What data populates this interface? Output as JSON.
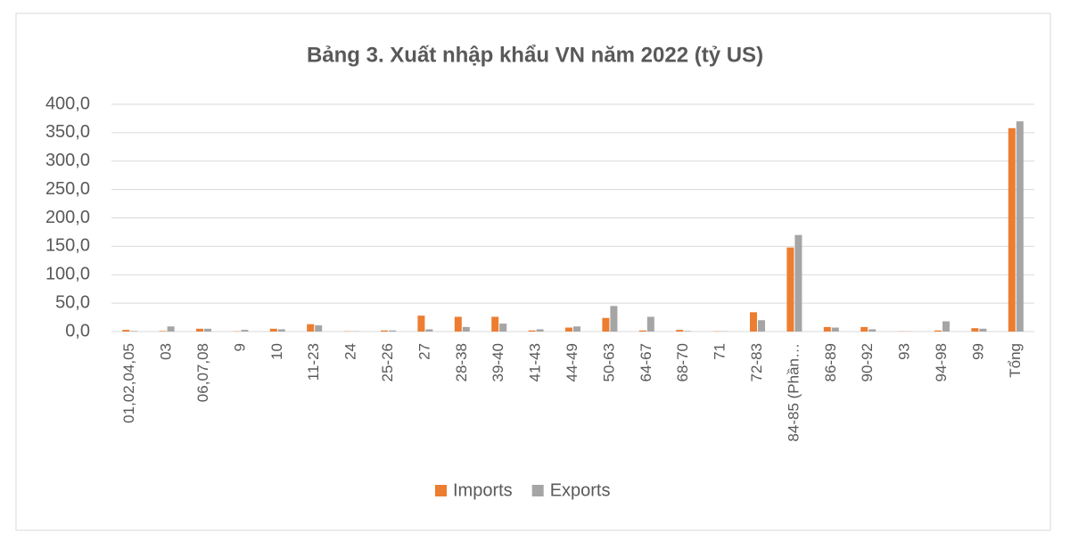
{
  "chart_data": {
    "type": "bar",
    "title": "Bảng 3. Xuất nhập khẩu VN năm 2022 (tỷ US)",
    "categories": [
      "01,02,04,05",
      "03",
      "06,07,08",
      "9",
      "10",
      "11-23",
      "24",
      "25-26",
      "27",
      "28-38",
      "39-40",
      "41-43",
      "44-49",
      "50-63",
      "64-67",
      "68-70",
      "71",
      "72-83",
      "84-85 (Phần…",
      "86-89",
      "90-92",
      "93",
      "94-98",
      "99",
      "Tổng"
    ],
    "series": [
      {
        "name": "Imports",
        "color": "#ED7D31",
        "values": [
          3,
          1,
          5,
          0.5,
          5,
          13,
          0.5,
          2,
          28,
          26,
          26,
          2,
          7,
          24,
          2,
          3,
          0.5,
          34,
          148,
          8,
          8,
          0.3,
          2,
          6,
          358
        ]
      },
      {
        "name": "Exports",
        "color": "#A5A5A5",
        "values": [
          1,
          9,
          5,
          3,
          4,
          11,
          0.5,
          2,
          4,
          8,
          14,
          4,
          9,
          45,
          26,
          1,
          0.5,
          20,
          170,
          7,
          4,
          0.3,
          18,
          5,
          370
        ]
      }
    ],
    "ylim": [
      0,
      400
    ],
    "yticks": [
      {
        "value": 0,
        "label": "0,0"
      },
      {
        "value": 50,
        "label": "50,0"
      },
      {
        "value": 100,
        "label": "100,0"
      },
      {
        "value": 150,
        "label": "150,0"
      },
      {
        "value": 200,
        "label": "200,0"
      },
      {
        "value": 250,
        "label": "250,0"
      },
      {
        "value": 300,
        "label": "300,0"
      },
      {
        "value": 350,
        "label": "350,0"
      },
      {
        "value": 400,
        "label": "400,0"
      }
    ],
    "grid": true,
    "legend": "bottom"
  }
}
